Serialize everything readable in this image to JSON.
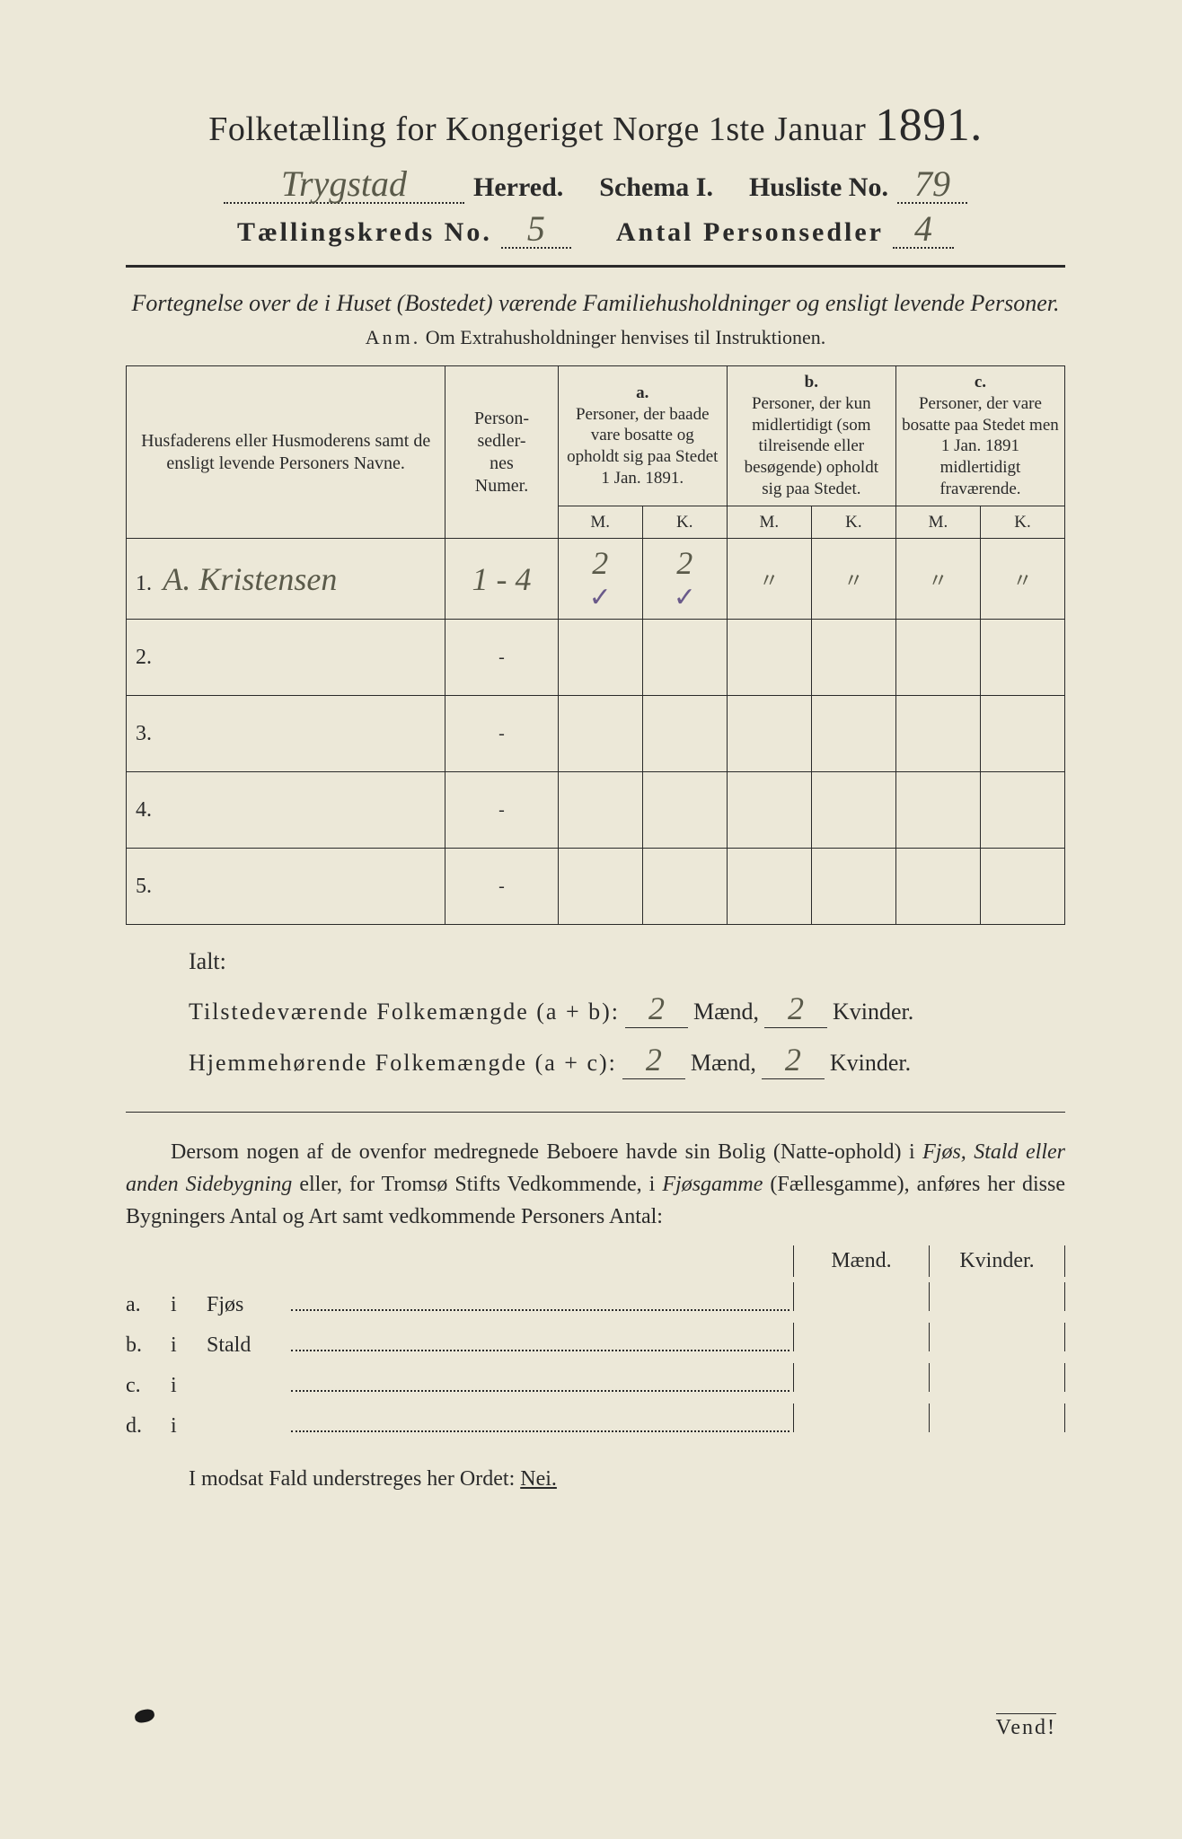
{
  "colors": {
    "paper": "#ece8d8",
    "ink": "#2a2a2a",
    "handwriting": "#5a5a4a",
    "tick": "#6a5a8a",
    "page_bg": "#3a3a3a"
  },
  "title": {
    "line1_a": "Folketælling for Kongeriget Norge 1ste Januar",
    "line1_year": "1891.",
    "herred_value": "Trygstad",
    "herred_label": "Herred.",
    "schema_label": "Schema I.",
    "husliste_label": "Husliste No.",
    "husliste_value": "79",
    "kreds_label": "Tællingskreds No.",
    "kreds_value": "5",
    "antal_label": "Antal Personsedler",
    "antal_value": "4"
  },
  "intro": {
    "text": "Fortegnelse over de i Huset (Bostedet) værende Familiehusholdninger og ensligt levende Personer.",
    "anm_label": "Anm.",
    "anm_text": "Om Extrahusholdninger henvises til Instruktionen."
  },
  "table": {
    "col_widths_pct": [
      34,
      12,
      9,
      9,
      9,
      9,
      9,
      9
    ],
    "head": {
      "names": "Husfaderens eller Husmoderens samt de ensligt levende Personers Navne.",
      "numer": "Person-\nsedler-\nnes\nNumer.",
      "a_label": "a.",
      "a_text": "Personer, der baade vare bosatte og opholdt sig paa Stedet 1 Jan. 1891.",
      "b_label": "b.",
      "b_text": "Personer, der kun midlertidigt (som tilreisende eller besøgende) opholdt sig paa Stedet.",
      "c_label": "c.",
      "c_text": "Personer, der vare bosatte paa Stedet men 1 Jan. 1891 midlertidigt fraværende.",
      "m": "M.",
      "k": "K."
    },
    "rows": [
      {
        "n": "1.",
        "name_hw": "A. Kristensen",
        "numer": "1 - 4",
        "a_m": "2",
        "a_k": "2",
        "b_m": "〃",
        "b_k": "〃",
        "c_m": "〃",
        "c_k": "〃",
        "tick_a_m": "✓",
        "tick_a_k": "✓"
      },
      {
        "n": "2.",
        "name_hw": "",
        "numer": "-",
        "a_m": "",
        "a_k": "",
        "b_m": "",
        "b_k": "",
        "c_m": "",
        "c_k": ""
      },
      {
        "n": "3.",
        "name_hw": "",
        "numer": "-",
        "a_m": "",
        "a_k": "",
        "b_m": "",
        "b_k": "",
        "c_m": "",
        "c_k": ""
      },
      {
        "n": "4.",
        "name_hw": "",
        "numer": "-",
        "a_m": "",
        "a_k": "",
        "b_m": "",
        "b_k": "",
        "c_m": "",
        "c_k": ""
      },
      {
        "n": "5.",
        "name_hw": "",
        "numer": "-",
        "a_m": "",
        "a_k": "",
        "b_m": "",
        "b_k": "",
        "c_m": "",
        "c_k": ""
      }
    ]
  },
  "totals": {
    "ialt": "Ialt:",
    "row1_label": "Tilstedeværende Folkemængde (a + b):",
    "row2_label": "Hjemmehørende Folkemængde (a + c):",
    "maend": "Mænd,",
    "kvinder": "Kvinder.",
    "r1_m": "2",
    "r1_k": "2",
    "r2_m": "2",
    "r2_k": "2"
  },
  "para": {
    "text_a": "Dersom nogen af de ovenfor medregnede Beboere havde sin Bolig (Natte-ophold) i ",
    "it1": "Fjøs, Stald eller anden Sidebygning",
    "text_b": " eller, for Tromsø Stifts Vedkommende, i ",
    "it2": "Fjøsgamme",
    "text_c": " (Fællesgamme), anføres her disse Bygningers Antal og Art samt vedkommende Personers Antal:"
  },
  "mk": {
    "m": "Mænd.",
    "k": "Kvinder."
  },
  "sidelist": [
    {
      "tag": "a.",
      "i": "i",
      "label": "Fjøs"
    },
    {
      "tag": "b.",
      "i": "i",
      "label": "Stald"
    },
    {
      "tag": "c.",
      "i": "i",
      "label": ""
    },
    {
      "tag": "d.",
      "i": "i",
      "label": ""
    }
  ],
  "modsat": {
    "text_a": "I modsat Fald understreges her Ordet: ",
    "nei": "Nei."
  },
  "vend": "Vend!"
}
